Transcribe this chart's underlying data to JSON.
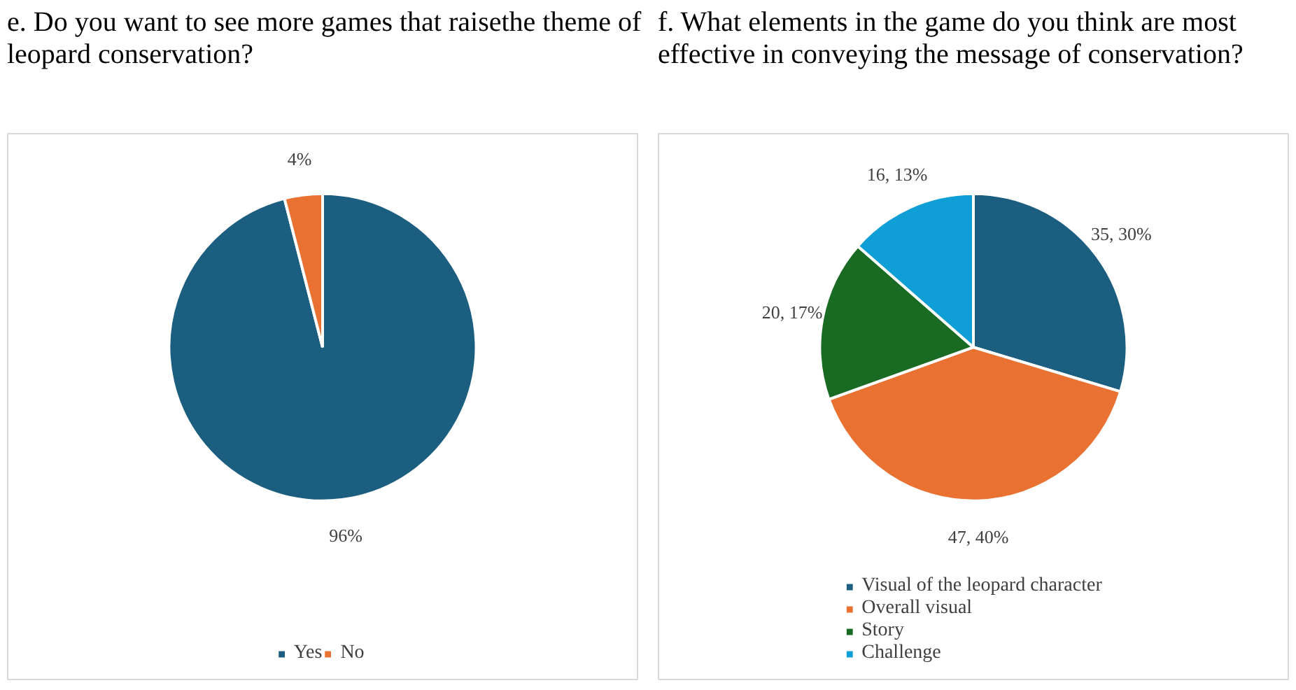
{
  "chart_data": [
    {
      "type": "pie",
      "title": "e. Do you want to see more games that raisethe theme of leopard conservation?",
      "categories": [
        "Yes",
        "No"
      ],
      "values": [
        96,
        4
      ],
      "colors": [
        "#1b5e80",
        "#e97132"
      ],
      "value_labels": [
        "96%",
        "4%"
      ],
      "legend": "bottom"
    },
    {
      "type": "pie",
      "title": "f. What elements in the game do you think are most effective in conveying the message of conservation?",
      "categories": [
        "Visual of the leopard character",
        "Overall visual",
        "Story",
        "Challenge"
      ],
      "values": [
        35,
        47,
        20,
        16
      ],
      "colors": [
        "#1b5e80",
        "#e97132",
        "#196b24",
        "#0f9ed5"
      ],
      "value_labels": [
        "35, 30%",
        "47, 40%",
        "20, 17%",
        "16, 13%"
      ],
      "legend": "bottom"
    }
  ]
}
